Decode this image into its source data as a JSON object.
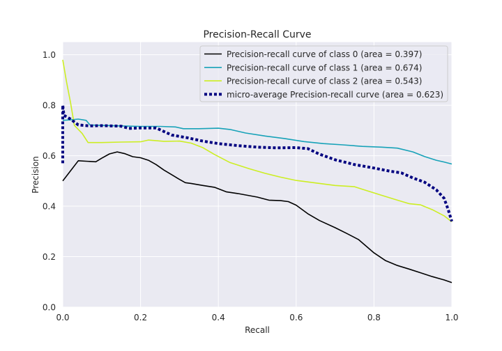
{
  "chart_data": {
    "type": "line",
    "title": "Precision-Recall Curve",
    "xlabel": "Recall",
    "ylabel": "Precision",
    "xlim": [
      0.0,
      1.0
    ],
    "ylim": [
      0.0,
      1.05
    ],
    "xticks": [
      "0.0",
      "0.2",
      "0.4",
      "0.6",
      "0.8",
      "1.0"
    ],
    "yticks": [
      "0.0",
      "0.2",
      "0.4",
      "0.6",
      "0.8",
      "1.0"
    ],
    "grid": true,
    "legend_position": "top-right",
    "series": [
      {
        "name": "Precision-recall curve of class 0 (area = 0.397)",
        "color": "#000000",
        "style": "solid",
        "points": [
          [
            0.0,
            0.5
          ],
          [
            0.02,
            0.54
          ],
          [
            0.04,
            0.58
          ],
          [
            0.06,
            0.578
          ],
          [
            0.085,
            0.576
          ],
          [
            0.1,
            0.59
          ],
          [
            0.12,
            0.607
          ],
          [
            0.14,
            0.615
          ],
          [
            0.16,
            0.608
          ],
          [
            0.18,
            0.596
          ],
          [
            0.2,
            0.592
          ],
          [
            0.22,
            0.582
          ],
          [
            0.24,
            0.565
          ],
          [
            0.26,
            0.543
          ],
          [
            0.28,
            0.525
          ],
          [
            0.3,
            0.506
          ],
          [
            0.315,
            0.493
          ],
          [
            0.33,
            0.49
          ],
          [
            0.36,
            0.482
          ],
          [
            0.39,
            0.475
          ],
          [
            0.42,
            0.457
          ],
          [
            0.45,
            0.45
          ],
          [
            0.5,
            0.436
          ],
          [
            0.53,
            0.424
          ],
          [
            0.56,
            0.422
          ],
          [
            0.58,
            0.418
          ],
          [
            0.6,
            0.404
          ],
          [
            0.63,
            0.37
          ],
          [
            0.66,
            0.343
          ],
          [
            0.7,
            0.315
          ],
          [
            0.73,
            0.292
          ],
          [
            0.76,
            0.268
          ],
          [
            0.8,
            0.215
          ],
          [
            0.83,
            0.184
          ],
          [
            0.86,
            0.165
          ],
          [
            0.89,
            0.151
          ],
          [
            0.92,
            0.136
          ],
          [
            0.95,
            0.121
          ],
          [
            0.98,
            0.108
          ],
          [
            1.0,
            0.097
          ]
        ]
      },
      {
        "name": "Precision-recall curve of class 1 (area = 0.674)",
        "color": "#17a2b8",
        "style": "solid",
        "points": [
          [
            0.0,
            0.74
          ],
          [
            0.02,
            0.742
          ],
          [
            0.04,
            0.745
          ],
          [
            0.06,
            0.74
          ],
          [
            0.07,
            0.722
          ],
          [
            0.1,
            0.72
          ],
          [
            0.15,
            0.718
          ],
          [
            0.2,
            0.716
          ],
          [
            0.25,
            0.716
          ],
          [
            0.29,
            0.714
          ],
          [
            0.31,
            0.707
          ],
          [
            0.35,
            0.707
          ],
          [
            0.4,
            0.709
          ],
          [
            0.43,
            0.704
          ],
          [
            0.47,
            0.69
          ],
          [
            0.52,
            0.678
          ],
          [
            0.57,
            0.668
          ],
          [
            0.62,
            0.656
          ],
          [
            0.67,
            0.648
          ],
          [
            0.72,
            0.643
          ],
          [
            0.77,
            0.637
          ],
          [
            0.82,
            0.634
          ],
          [
            0.86,
            0.63
          ],
          [
            0.9,
            0.615
          ],
          [
            0.93,
            0.597
          ],
          [
            0.96,
            0.582
          ],
          [
            0.98,
            0.575
          ],
          [
            1.0,
            0.567
          ]
        ]
      },
      {
        "name": "Precision-recall curve of class 2 (area = 0.543)",
        "color": "#ccee22",
        "style": "solid",
        "points": [
          [
            0.0,
            0.98
          ],
          [
            0.01,
            0.89
          ],
          [
            0.02,
            0.81
          ],
          [
            0.03,
            0.72
          ],
          [
            0.05,
            0.688
          ],
          [
            0.065,
            0.652
          ],
          [
            0.1,
            0.652
          ],
          [
            0.15,
            0.654
          ],
          [
            0.2,
            0.655
          ],
          [
            0.22,
            0.662
          ],
          [
            0.26,
            0.657
          ],
          [
            0.3,
            0.658
          ],
          [
            0.33,
            0.65
          ],
          [
            0.36,
            0.632
          ],
          [
            0.39,
            0.605
          ],
          [
            0.43,
            0.573
          ],
          [
            0.48,
            0.548
          ],
          [
            0.52,
            0.53
          ],
          [
            0.56,
            0.515
          ],
          [
            0.6,
            0.502
          ],
          [
            0.65,
            0.492
          ],
          [
            0.7,
            0.482
          ],
          [
            0.75,
            0.477
          ],
          [
            0.77,
            0.467
          ],
          [
            0.82,
            0.443
          ],
          [
            0.86,
            0.424
          ],
          [
            0.89,
            0.41
          ],
          [
            0.92,
            0.405
          ],
          [
            0.95,
            0.386
          ],
          [
            0.98,
            0.362
          ],
          [
            1.0,
            0.338
          ]
        ]
      },
      {
        "name": "micro-average Precision-recall curve (area = 0.623)",
        "color": "#000080",
        "style": "dotted",
        "points": [
          [
            0.0,
            0.57
          ],
          [
            0.0,
            0.8
          ],
          [
            0.003,
            0.76
          ],
          [
            0.02,
            0.745
          ],
          [
            0.04,
            0.722
          ],
          [
            0.07,
            0.718
          ],
          [
            0.1,
            0.719
          ],
          [
            0.15,
            0.717
          ],
          [
            0.17,
            0.708
          ],
          [
            0.2,
            0.71
          ],
          [
            0.24,
            0.71
          ],
          [
            0.28,
            0.682
          ],
          [
            0.32,
            0.671
          ],
          [
            0.36,
            0.658
          ],
          [
            0.4,
            0.648
          ],
          [
            0.45,
            0.64
          ],
          [
            0.5,
            0.634
          ],
          [
            0.55,
            0.631
          ],
          [
            0.6,
            0.632
          ],
          [
            0.63,
            0.628
          ],
          [
            0.66,
            0.606
          ],
          [
            0.7,
            0.584
          ],
          [
            0.75,
            0.565
          ],
          [
            0.8,
            0.551
          ],
          [
            0.84,
            0.539
          ],
          [
            0.87,
            0.532
          ],
          [
            0.9,
            0.512
          ],
          [
            0.93,
            0.495
          ],
          [
            0.96,
            0.465
          ],
          [
            0.98,
            0.432
          ],
          [
            0.99,
            0.39
          ],
          [
            1.0,
            0.34
          ]
        ]
      }
    ]
  }
}
